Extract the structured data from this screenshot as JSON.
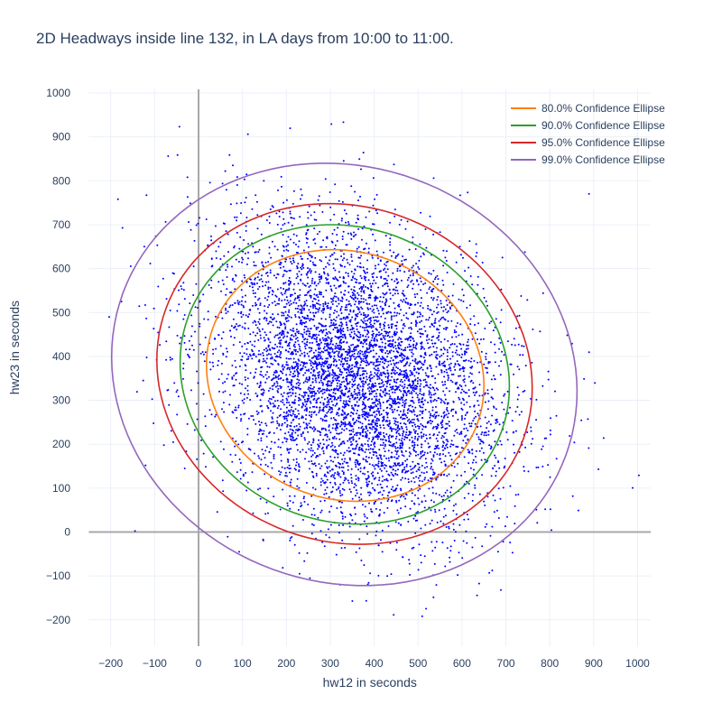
{
  "chart_data": {
    "type": "scatter",
    "title": "2D Headways inside line 132, in LA days from 10:00 to 11:00.",
    "xlabel": "hw12 in seconds",
    "ylabel": "hw23 in seconds",
    "xlim": [
      -250,
      1030
    ],
    "ylim": [
      -260,
      1000
    ],
    "x_ticks": [
      -200,
      -100,
      0,
      100,
      200,
      300,
      400,
      500,
      600,
      700,
      800,
      900,
      1000
    ],
    "y_ticks": [
      -200,
      -100,
      0,
      100,
      200,
      300,
      400,
      500,
      600,
      700,
      800,
      900,
      1000
    ],
    "grid": true,
    "legend_position": "top-right",
    "points": {
      "color": "#0000ff",
      "count": 6000,
      "mean": [
        360,
        360
      ],
      "std": [
        165,
        170
      ],
      "correlation": -0.25
    },
    "series": [
      {
        "name": "80.0% Confidence Ellipse",
        "color": "#ff7f0e",
        "xrange": [
          18,
          650
        ],
        "yrange": [
          70,
          643
        ]
      },
      {
        "name": "90.0% Confidence Ellipse",
        "color": "#2ca02c",
        "xrange": [
          -42,
          708
        ],
        "yrange": [
          18,
          700
        ]
      },
      {
        "name": "95.0% Confidence Ellipse",
        "color": "#d62728",
        "xrange": [
          -95,
          760
        ],
        "yrange": [
          -28,
          748
        ]
      },
      {
        "name": "99.0% Confidence Ellipse",
        "color": "#9467bd",
        "xrange": [
          -198,
          862
        ],
        "yrange": [
          -122,
          840
        ]
      }
    ]
  }
}
